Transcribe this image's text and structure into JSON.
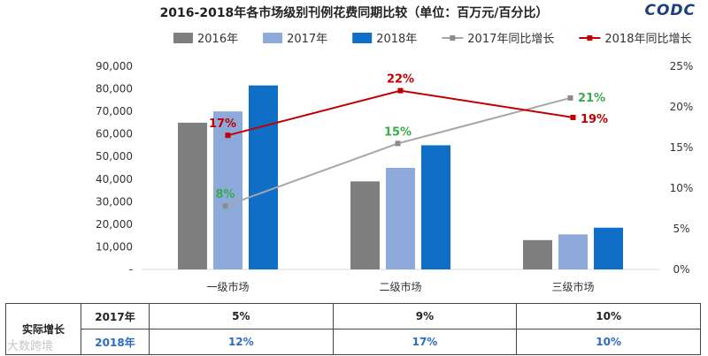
{
  "logo": "CODC",
  "watermark": "大数跨境",
  "chart_data": {
    "type": "bar",
    "title": "2016-2018年各市场级别刊例花费同期比较（单位：百万元/百分比）",
    "categories": [
      "一级市场",
      "二级市场",
      "三级市场"
    ],
    "series": [
      {
        "name": "2016年",
        "type": "bar",
        "color": "#7f7f7f",
        "values": [
          65000,
          39000,
          13000
        ]
      },
      {
        "name": "2017年",
        "type": "bar",
        "color": "#8eaadb",
        "values": [
          70000,
          45000,
          15500
        ]
      },
      {
        "name": "2018年",
        "type": "bar",
        "color": "#0f6fc6",
        "values": [
          81500,
          55000,
          18500
        ]
      },
      {
        "name": "2017年同比增长",
        "type": "line",
        "axis": "right",
        "color": "#a6a6a6",
        "label_color": "#3aaa4a",
        "values": [
          0.078,
          0.155,
          0.211
        ],
        "labels": [
          "8%",
          "15%",
          "21%"
        ]
      },
      {
        "name": "2018年同比增长",
        "type": "line",
        "axis": "right",
        "color": "#c00000",
        "label_color": "#c00000",
        "values": [
          0.165,
          0.22,
          0.187
        ],
        "labels": [
          "17%",
          "22%",
          "19%"
        ]
      }
    ],
    "y_left": {
      "min": 0,
      "max": 90000,
      "ticks": [
        "-",
        "10,000",
        "20,000",
        "30,000",
        "40,000",
        "50,000",
        "60,000",
        "70,000",
        "80,000",
        "90,000"
      ]
    },
    "y_right": {
      "min": 0,
      "max": 0.25,
      "ticks": [
        "0%",
        "5%",
        "10%",
        "15%",
        "20%",
        "25%"
      ]
    },
    "legend": "top"
  },
  "table": {
    "row_header": "实际增长",
    "rows": [
      {
        "year": "2017年",
        "values": [
          "5%",
          "9%",
          "10%"
        ]
      },
      {
        "year": "2018年",
        "values": [
          "12%",
          "17%",
          "10%"
        ]
      }
    ]
  }
}
